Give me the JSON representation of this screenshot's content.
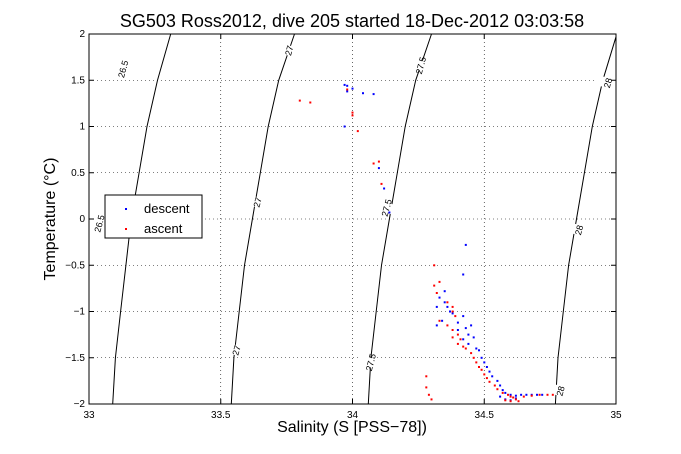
{
  "chart_data": {
    "type": "scatter",
    "title": "SG503 Ross2012, dive 205 started 18-Dec-2012 03:03:58",
    "xlabel": "Salinity (S [PSS−78])",
    "ylabel": "Temperature (°C)",
    "xlim": [
      33,
      35
    ],
    "ylim": [
      -2,
      2
    ],
    "x_ticks": [
      33,
      33.5,
      34,
      34.5,
      35
    ],
    "x_tick_labels": [
      "33",
      "33.5",
      "34",
      "34.5",
      "35"
    ],
    "y_ticks": [
      -2,
      -1.5,
      -1,
      -0.5,
      0,
      0.5,
      1,
      1.5,
      2
    ],
    "y_tick_labels": [
      "−2",
      "−1.5",
      "−1",
      "−0.5",
      "0",
      "0.5",
      "1",
      "1.5",
      "2"
    ],
    "grid": true,
    "legend": {
      "position": "left",
      "entries": [
        "descent",
        "ascent"
      ]
    },
    "density_contours": [
      {
        "label": "26.5",
        "points": [
          [
            33.09,
            -2.0
          ],
          [
            33.1,
            -1.5
          ],
          [
            33.12,
            -1.0
          ],
          [
            33.14,
            -0.5
          ],
          [
            33.16,
            0.0
          ],
          [
            33.19,
            0.5
          ],
          [
            33.22,
            1.0
          ],
          [
            33.26,
            1.5
          ],
          [
            33.31,
            2.0
          ]
        ],
        "labels_at": [
          [
            33.04,
            -0.05
          ],
          [
            33.13,
            1.62
          ]
        ]
      },
      {
        "label": "27",
        "points": [
          [
            33.54,
            -2.0
          ],
          [
            33.55,
            -1.5
          ],
          [
            33.57,
            -1.0
          ],
          [
            33.59,
            -0.5
          ],
          [
            33.62,
            0.0
          ],
          [
            33.65,
            0.5
          ],
          [
            33.68,
            1.0
          ],
          [
            33.72,
            1.5
          ],
          [
            33.78,
            2.0
          ]
        ],
        "labels_at": [
          [
            33.56,
            -1.42
          ],
          [
            33.64,
            0.18
          ],
          [
            33.76,
            1.82
          ]
        ]
      },
      {
        "label": "27.5",
        "points": [
          [
            34.06,
            -2.0
          ],
          [
            34.07,
            -1.5
          ],
          [
            34.09,
            -1.0
          ],
          [
            34.11,
            -0.5
          ],
          [
            34.14,
            0.0
          ],
          [
            34.17,
            0.5
          ],
          [
            34.2,
            1.0
          ],
          [
            34.24,
            1.5
          ],
          [
            34.3,
            2.0
          ]
        ],
        "labels_at": [
          [
            34.07,
            -1.55
          ],
          [
            34.13,
            0.12
          ],
          [
            34.26,
            1.66
          ]
        ]
      },
      {
        "label": "28",
        "points": [
          [
            34.77,
            -2.0
          ],
          [
            34.78,
            -1.5
          ],
          [
            34.8,
            -1.0
          ],
          [
            34.82,
            -0.5
          ],
          [
            34.85,
            0.0
          ],
          [
            34.88,
            0.5
          ],
          [
            34.91,
            1.0
          ],
          [
            34.95,
            1.5
          ],
          [
            35.0,
            1.97
          ]
        ],
        "labels_at": [
          [
            34.79,
            -1.86
          ],
          [
            34.86,
            -0.12
          ],
          [
            34.97,
            1.47
          ]
        ]
      }
    ],
    "series": [
      {
        "name": "descent",
        "color": "#0000ff",
        "points": [
          [
            33.97,
            1.45
          ],
          [
            33.98,
            1.44
          ],
          [
            34.0,
            1.41
          ],
          [
            33.98,
            1.38
          ],
          [
            34.04,
            1.36
          ],
          [
            34.08,
            1.35
          ],
          [
            33.97,
            1.0
          ],
          [
            34.1,
            0.55
          ],
          [
            34.12,
            0.33
          ],
          [
            34.14,
            0.07
          ],
          [
            34.43,
            -0.28
          ],
          [
            34.42,
            -0.6
          ],
          [
            34.35,
            -0.78
          ],
          [
            34.33,
            -0.85
          ],
          [
            34.35,
            -0.9
          ],
          [
            34.32,
            -0.95
          ],
          [
            34.36,
            -0.95
          ],
          [
            34.37,
            -1.0
          ],
          [
            34.38,
            -1.02
          ],
          [
            34.42,
            -1.05
          ],
          [
            34.34,
            -1.1
          ],
          [
            34.4,
            -1.12
          ],
          [
            34.32,
            -1.15
          ],
          [
            34.4,
            -1.2
          ],
          [
            34.43,
            -1.18
          ],
          [
            34.45,
            -1.15
          ],
          [
            34.44,
            -1.25
          ],
          [
            34.46,
            -1.28
          ],
          [
            34.42,
            -1.3
          ],
          [
            34.44,
            -1.35
          ],
          [
            34.47,
            -1.4
          ],
          [
            34.48,
            -1.42
          ],
          [
            34.49,
            -1.5
          ],
          [
            34.5,
            -1.55
          ],
          [
            34.51,
            -1.6
          ],
          [
            34.52,
            -1.65
          ],
          [
            34.53,
            -1.7
          ],
          [
            34.55,
            -1.75
          ],
          [
            34.56,
            -1.8
          ],
          [
            34.57,
            -1.85
          ],
          [
            34.58,
            -1.88
          ],
          [
            34.6,
            -1.9
          ],
          [
            34.62,
            -1.91
          ],
          [
            34.64,
            -1.9
          ],
          [
            34.66,
            -1.9
          ],
          [
            34.68,
            -1.9
          ],
          [
            34.7,
            -1.9
          ],
          [
            34.72,
            -1.9
          ],
          [
            34.58,
            -1.95
          ],
          [
            34.6,
            -1.96
          ],
          [
            34.62,
            -1.94
          ],
          [
            34.56,
            -1.92
          ]
        ]
      },
      {
        "name": "ascent",
        "color": "#ff0000",
        "points": [
          [
            33.8,
            1.28
          ],
          [
            33.84,
            1.26
          ],
          [
            33.98,
            1.4
          ],
          [
            34.0,
            1.15
          ],
          [
            34.0,
            1.12
          ],
          [
            34.02,
            0.95
          ],
          [
            34.08,
            0.6
          ],
          [
            34.1,
            0.62
          ],
          [
            34.11,
            0.38
          ],
          [
            34.31,
            -0.5
          ],
          [
            34.33,
            -0.68
          ],
          [
            34.31,
            -0.72
          ],
          [
            34.32,
            -0.8
          ],
          [
            34.36,
            -0.9
          ],
          [
            34.38,
            -0.95
          ],
          [
            34.38,
            -1.0
          ],
          [
            34.39,
            -1.05
          ],
          [
            34.33,
            -1.1
          ],
          [
            34.36,
            -1.15
          ],
          [
            34.38,
            -1.2
          ],
          [
            34.4,
            -1.25
          ],
          [
            34.38,
            -1.28
          ],
          [
            34.41,
            -1.3
          ],
          [
            34.4,
            -1.35
          ],
          [
            34.42,
            -1.38
          ],
          [
            34.43,
            -1.4
          ],
          [
            34.45,
            -1.45
          ],
          [
            34.46,
            -1.5
          ],
          [
            34.47,
            -1.55
          ],
          [
            34.48,
            -1.6
          ],
          [
            34.49,
            -1.63
          ],
          [
            34.5,
            -1.68
          ],
          [
            34.51,
            -1.72
          ],
          [
            34.52,
            -1.76
          ],
          [
            34.54,
            -1.8
          ],
          [
            34.55,
            -1.84
          ],
          [
            34.57,
            -1.88
          ],
          [
            34.59,
            -1.9
          ],
          [
            34.6,
            -1.92
          ],
          [
            34.61,
            -1.93
          ],
          [
            34.62,
            -1.95
          ],
          [
            34.63,
            -1.97
          ],
          [
            34.6,
            -1.97
          ],
          [
            34.58,
            -1.96
          ],
          [
            34.65,
            -1.92
          ],
          [
            34.68,
            -1.91
          ],
          [
            34.71,
            -1.9
          ],
          [
            34.74,
            -1.9
          ],
          [
            34.76,
            -1.9
          ],
          [
            34.28,
            -1.82
          ],
          [
            34.28,
            -1.7
          ],
          [
            34.29,
            -1.9
          ],
          [
            34.3,
            -1.95
          ]
        ]
      }
    ]
  }
}
